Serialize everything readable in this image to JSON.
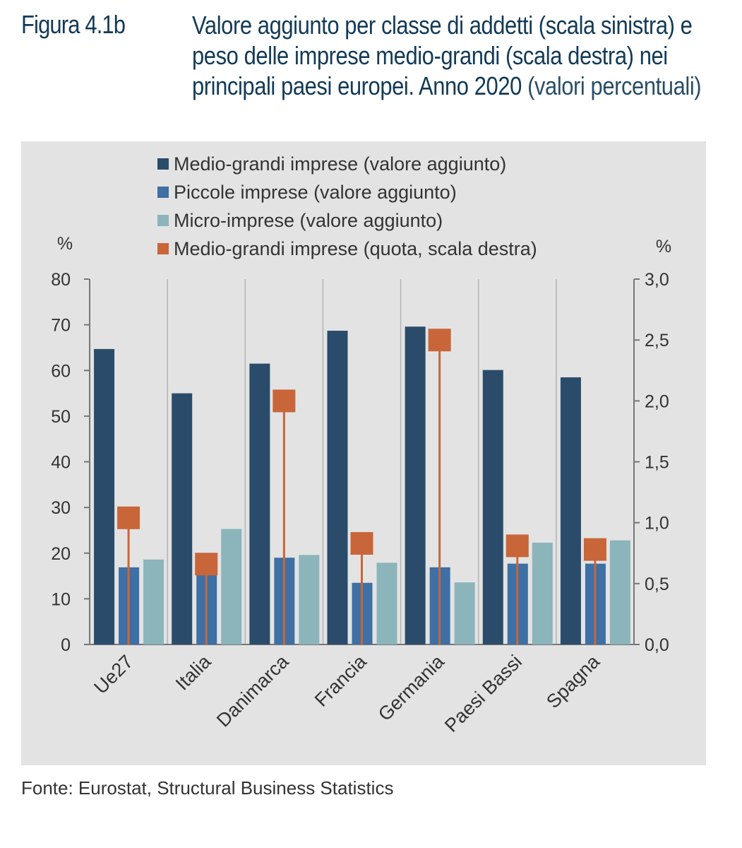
{
  "header": {
    "figure_label": "Figura 4.1b",
    "title_main": "Valore aggiunto per classe di addetti (scala sinistra) e peso delle imprese medio-grandi (scala destra) nei principali paesi europei. Anno 2020",
    "title_sub": "(valori percentuali)"
  },
  "source": "Fonte: Eurostat, Structural Business Statistics",
  "colors": {
    "medio_grandi": "#2a4c6a",
    "piccole": "#3e6fa5",
    "micro": "#8cb4bb",
    "quota": "#c8663a",
    "panel": "#e3e3e3"
  },
  "chart_data": {
    "type": "bar",
    "categories": [
      "Ue27",
      "Italia",
      "Danimarca",
      "Francia",
      "Germania",
      "Paesi Bassi",
      "Spagna"
    ],
    "series": [
      {
        "name": "Medio-grandi imprese (valore aggiunto)",
        "axis": "left",
        "kind": "bar",
        "values": [
          64.7,
          55.0,
          61.5,
          68.7,
          69.6,
          60.1,
          58.5
        ]
      },
      {
        "name": "Piccole imprese (valore aggiunto)",
        "axis": "left",
        "kind": "bar",
        "values": [
          16.9,
          15.3,
          19.0,
          13.5,
          16.9,
          17.7,
          17.7
        ]
      },
      {
        "name": "Micro-imprese (valore aggiunto)",
        "axis": "left",
        "kind": "bar",
        "values": [
          18.6,
          25.3,
          19.6,
          17.9,
          13.6,
          22.3,
          22.8
        ]
      },
      {
        "name": "Medio-grandi imprese (quota, scala destra)",
        "axis": "right",
        "kind": "marker-line",
        "values": [
          1.04,
          0.66,
          2.0,
          0.83,
          2.5,
          0.81,
          0.78
        ]
      }
    ],
    "y_left": {
      "label": "%",
      "lim": [
        0,
        80
      ],
      "ticks": [
        "0",
        "10",
        "20",
        "30",
        "40",
        "50",
        "60",
        "70",
        "80"
      ],
      "tick_values": [
        0,
        10,
        20,
        30,
        40,
        50,
        60,
        70,
        80
      ]
    },
    "y_right": {
      "label": "%",
      "lim": [
        0,
        3
      ],
      "ticks": [
        "0,0",
        "0,5",
        "1,0",
        "1,5",
        "2,0",
        "2,5",
        "3,0"
      ],
      "tick_values": [
        0,
        0.5,
        1.0,
        1.5,
        2.0,
        2.5,
        3.0
      ]
    },
    "grid": "vertical",
    "legend_position": "top"
  }
}
